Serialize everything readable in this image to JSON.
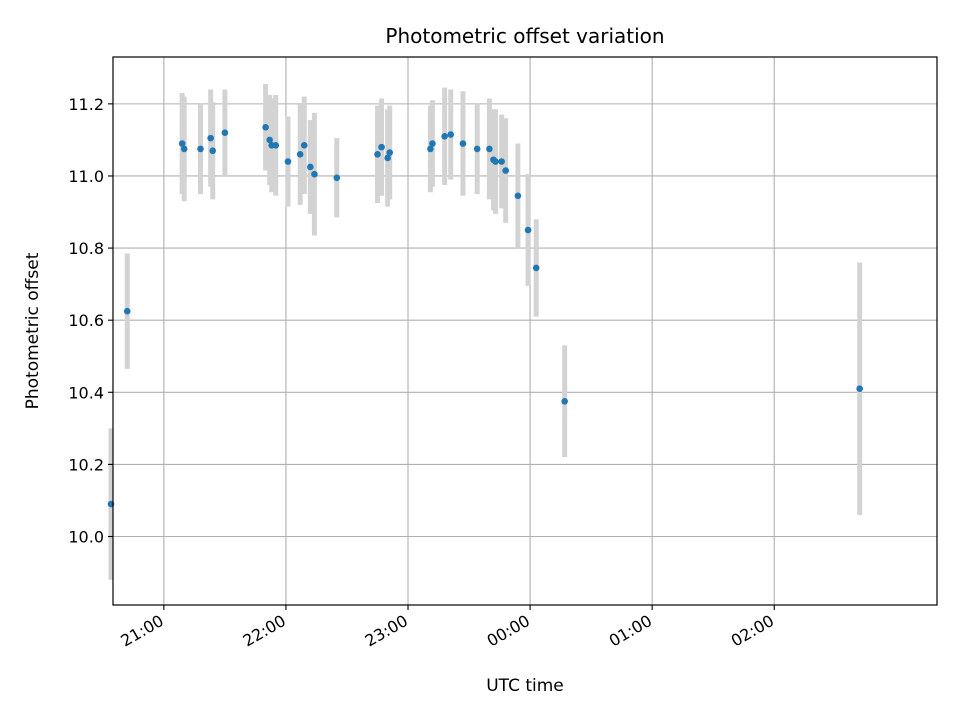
{
  "chart_data": {
    "type": "scatter",
    "title": "Photometric offset variation",
    "xlabel": "UTC time",
    "ylabel": "Photometric offset",
    "x_axis_type": "time",
    "xlim": [
      "20:35",
      "03:20"
    ],
    "ylim": [
      9.81,
      11.33
    ],
    "grid": true,
    "x_ticks": [
      "21:00",
      "22:00",
      "23:00",
      "00:00",
      "01:00",
      "02:00"
    ],
    "y_ticks": [
      "10.0",
      "10.2",
      "10.4",
      "10.6",
      "10.8",
      "11.0",
      "11.2"
    ],
    "colors": {
      "points": "#1f77b4",
      "errorbars": "#d3d3d3",
      "grid": "#b0b0b0"
    },
    "points": [
      {
        "x": "20:34",
        "y": 10.09,
        "err": 0.21
      },
      {
        "x": "20:42",
        "y": 10.625,
        "err": 0.16
      },
      {
        "x": "21:09",
        "y": 11.09,
        "err": 0.14
      },
      {
        "x": "21:10",
        "y": 11.075,
        "err": 0.145
      },
      {
        "x": "21:18",
        "y": 11.075,
        "err": 0.125
      },
      {
        "x": "21:23",
        "y": 11.105,
        "err": 0.135
      },
      {
        "x": "21:24",
        "y": 11.07,
        "err": 0.135
      },
      {
        "x": "21:30",
        "y": 11.12,
        "err": 0.12
      },
      {
        "x": "21:50",
        "y": 11.135,
        "err": 0.12
      },
      {
        "x": "21:52",
        "y": 11.1,
        "err": 0.125
      },
      {
        "x": "21:53",
        "y": 11.085,
        "err": 0.13
      },
      {
        "x": "21:55",
        "y": 11.085,
        "err": 0.14
      },
      {
        "x": "22:01",
        "y": 11.04,
        "err": 0.125
      },
      {
        "x": "22:07",
        "y": 11.06,
        "err": 0.14
      },
      {
        "x": "22:09",
        "y": 11.085,
        "err": 0.135
      },
      {
        "x": "22:12",
        "y": 11.025,
        "err": 0.13
      },
      {
        "x": "22:14",
        "y": 11.005,
        "err": 0.17
      },
      {
        "x": "22:25",
        "y": 10.995,
        "err": 0.11
      },
      {
        "x": "22:45",
        "y": 11.06,
        "err": 0.135
      },
      {
        "x": "22:47",
        "y": 11.08,
        "err": 0.135
      },
      {
        "x": "22:50",
        "y": 11.05,
        "err": 0.135
      },
      {
        "x": "22:51",
        "y": 11.065,
        "err": 0.13
      },
      {
        "x": "23:11",
        "y": 11.075,
        "err": 0.12
      },
      {
        "x": "23:12",
        "y": 11.09,
        "err": 0.12
      },
      {
        "x": "23:18",
        "y": 11.11,
        "err": 0.135
      },
      {
        "x": "23:21",
        "y": 11.115,
        "err": 0.125
      },
      {
        "x": "23:27",
        "y": 11.09,
        "err": 0.145
      },
      {
        "x": "23:34",
        "y": 11.075,
        "err": 0.125
      },
      {
        "x": "23:40",
        "y": 11.075,
        "err": 0.14
      },
      {
        "x": "23:42",
        "y": 11.045,
        "err": 0.14
      },
      {
        "x": "23:43",
        "y": 11.04,
        "err": 0.145
      },
      {
        "x": "23:46",
        "y": 11.04,
        "err": 0.13
      },
      {
        "x": "23:48",
        "y": 11.015,
        "err": 0.145
      },
      {
        "x": "23:54",
        "y": 10.945,
        "err": 0.145
      },
      {
        "x": "23:59",
        "y": 10.85,
        "err": 0.155
      },
      {
        "x": "00:03",
        "y": 10.745,
        "err": 0.135
      },
      {
        "x": "00:17",
        "y": 10.375,
        "err": 0.155
      },
      {
        "x": "02:42",
        "y": 10.41,
        "err": 0.35
      }
    ]
  }
}
